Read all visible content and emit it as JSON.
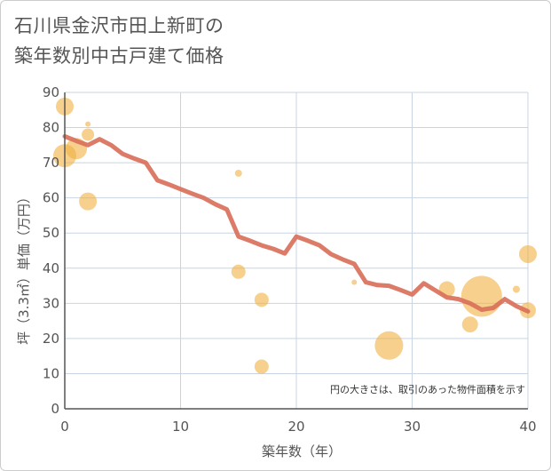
{
  "chart_data": {
    "type": "scatter",
    "title_line1": "石川県金沢市田上新町の",
    "title_line2": "築年数別中古戸建て価格",
    "xlabel": "築年数（年）",
    "ylabel": "坪（3.3㎡）単価（万円）",
    "xlim": [
      0,
      40
    ],
    "ylim": [
      0,
      90
    ],
    "x_ticks": [
      "0",
      "10",
      "20",
      "30",
      "40"
    ],
    "y_ticks": [
      "0",
      "10",
      "20",
      "30",
      "40",
      "50",
      "60",
      "70",
      "80",
      "90"
    ],
    "grid": true,
    "note": "円の大きさは、取引のあった物件面積を示す",
    "colors": {
      "line": "#d9705a",
      "bubble": "#f0b040",
      "grid": "#c8d4e2",
      "axis": "#555555"
    },
    "trend_line": {
      "x": [
        0,
        1,
        2,
        3,
        4,
        5,
        6,
        7,
        8,
        9,
        10,
        11,
        12,
        13,
        14,
        15,
        16,
        17,
        18,
        19,
        20,
        21,
        22,
        23,
        24,
        25,
        26,
        27,
        28,
        29,
        30,
        31,
        32,
        33,
        34,
        35,
        36,
        37,
        38,
        39,
        40
      ],
      "y": [
        77.5,
        76.2,
        75.0,
        76.7,
        75.0,
        72.5,
        71.2,
        70.0,
        65.0,
        63.8,
        62.5,
        61.2,
        60.0,
        58.2,
        56.7,
        49.0,
        47.8,
        46.5,
        45.5,
        44.2,
        49.0,
        47.8,
        46.5,
        44.0,
        42.5,
        41.2,
        36.0,
        35.2,
        35.0,
        33.8,
        32.5,
        35.7,
        33.7,
        31.7,
        31.2,
        30.0,
        28.2,
        28.7,
        31.2,
        29.2,
        27.7
      ]
    },
    "bubbles": [
      {
        "x": 0,
        "y": 86,
        "size": 10
      },
      {
        "x": 0,
        "y": 72,
        "size": 13
      },
      {
        "x": 1,
        "y": 74,
        "size": 12
      },
      {
        "x": 2,
        "y": 81,
        "size": 3
      },
      {
        "x": 2,
        "y": 78,
        "size": 7
      },
      {
        "x": 2,
        "y": 59,
        "size": 10
      },
      {
        "x": 15,
        "y": 67,
        "size": 4
      },
      {
        "x": 15,
        "y": 39,
        "size": 8
      },
      {
        "x": 17,
        "y": 31,
        "size": 8
      },
      {
        "x": 17,
        "y": 12,
        "size": 8
      },
      {
        "x": 25,
        "y": 36,
        "size": 3
      },
      {
        "x": 28,
        "y": 18,
        "size": 16
      },
      {
        "x": 33,
        "y": 34,
        "size": 9
      },
      {
        "x": 35,
        "y": 24,
        "size": 9
      },
      {
        "x": 36,
        "y": 32,
        "size": 23
      },
      {
        "x": 39,
        "y": 34,
        "size": 4
      },
      {
        "x": 40,
        "y": 44,
        "size": 10
      },
      {
        "x": 40,
        "y": 28,
        "size": 9
      }
    ]
  }
}
